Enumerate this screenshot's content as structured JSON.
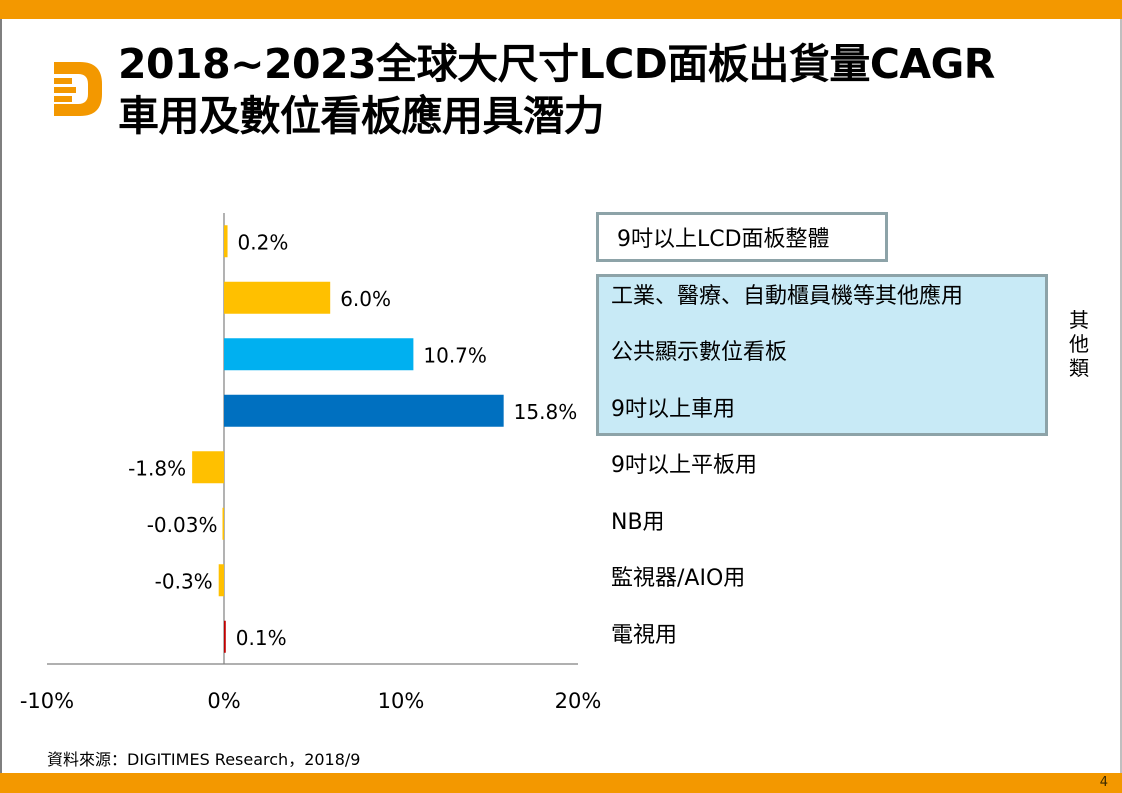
{
  "slide": {
    "title_line1": "2018~2023全球大尺寸LCD面板出貨量CAGR",
    "title_line2": "車用及數位看板應用具潛力",
    "source": "資料來源：DIGITIMES Research，2018/9",
    "page_number": "4",
    "logo": "digitimes-d-logo-icon",
    "brand_color": "#F39800"
  },
  "chart_data": {
    "type": "bar",
    "orientation": "horizontal",
    "title": "",
    "xlabel": "",
    "ylabel": "",
    "xlim": [
      -10,
      20
    ],
    "x_ticks": [
      -10,
      0,
      10,
      20
    ],
    "x_tick_labels": [
      "-10%",
      "0%",
      "10%",
      "20%"
    ],
    "grid": false,
    "categories": [
      "9吋以上LCD面板整體",
      "工業、醫療、自動櫃員機等其他應用",
      "公共顯示數位看板",
      "9吋以上車用",
      "9吋以上平板用",
      "NB用",
      "監視器/AIO用",
      "電視用"
    ],
    "values": [
      0.2,
      6.0,
      10.7,
      15.8,
      -1.8,
      -0.03,
      -0.3,
      0.1
    ],
    "data_labels": [
      "0.2%",
      "6.0%",
      "10.7%",
      "15.8%",
      "-1.8%",
      "-0.03%",
      "-0.3%",
      "0.1%"
    ],
    "bar_colors": [
      "#FFC000",
      "#FFC000",
      "#00B0F0",
      "#0070C0",
      "#FFC000",
      "#FFC000",
      "#FFC000",
      "#C00000"
    ],
    "groups": [
      {
        "name": "9吋以上LCD面板整體",
        "members": [
          0
        ],
        "highlight": "outlined"
      },
      {
        "name": "其他類",
        "members": [
          1,
          2,
          3
        ],
        "highlight": "#C8EAF6"
      }
    ],
    "group_label": "其他類"
  }
}
